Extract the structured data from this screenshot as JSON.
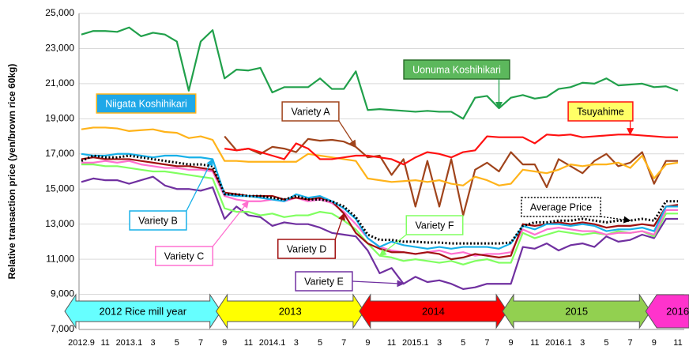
{
  "chart_data": {
    "type": "line",
    "y_label": "Relative transaction price (yen/brown rice 60kg)",
    "categories": [
      "2012.9",
      null,
      "11",
      null,
      "2013.1",
      null,
      "3",
      null,
      "5",
      null,
      "7",
      null,
      "9",
      null,
      "11",
      null,
      "2014.1",
      null,
      "3",
      null,
      "5",
      null,
      "7",
      null,
      "9",
      null,
      "11",
      null,
      "2015.1",
      null,
      "3",
      null,
      "5",
      null,
      "7",
      null,
      "9",
      null,
      "11",
      null,
      "2016.1",
      null,
      "3",
      null,
      "5",
      null,
      "7",
      null,
      "9",
      null,
      "11"
    ],
    "ylim": [
      7000,
      25000
    ],
    "yticks": [
      {
        "value": 7000,
        "label": "7,000"
      },
      {
        "value": 9000,
        "label": "9,000"
      },
      {
        "value": 11000,
        "label": "11,000"
      },
      {
        "value": 13000,
        "label": "13,000"
      },
      {
        "value": 15000,
        "label": "15,000"
      },
      {
        "value": 17000,
        "label": "17,000"
      },
      {
        "value": 19000,
        "label": "19,000"
      },
      {
        "value": 21000,
        "label": "21,000"
      },
      {
        "value": 23000,
        "label": "23,000"
      },
      {
        "value": 25000,
        "label": "25,000"
      }
    ],
    "grid": true,
    "series": [
      {
        "name": "Uonuma Koshihikari",
        "color": "#21a04b",
        "values": [
          23800,
          24000,
          24000,
          23950,
          24200,
          23700,
          23900,
          23800,
          23400,
          20600,
          23400,
          24050,
          21300,
          21800,
          21750,
          21900,
          20500,
          20800,
          20800,
          20800,
          21300,
          20700,
          20700,
          21700,
          19500,
          19550,
          19500,
          19450,
          19400,
          19450,
          19400,
          19400,
          19000,
          20200,
          20300,
          19600,
          20200,
          20350,
          20150,
          20250,
          20700,
          20800,
          21050,
          21000,
          21300,
          20900,
          20950,
          21000,
          20800,
          20850,
          20600
        ]
      },
      {
        "name": "Niigata Koshihikari",
        "color": "#ffb31a",
        "values": [
          18400,
          18500,
          18500,
          18450,
          18300,
          18350,
          18400,
          18250,
          18200,
          17900,
          18000,
          17800,
          16600,
          16600,
          16550,
          16550,
          16550,
          16550,
          16550,
          17000,
          16900,
          16800,
          16700,
          16600,
          15600,
          15500,
          15400,
          15450,
          15500,
          15400,
          15500,
          15300,
          15200,
          15700,
          15500,
          15200,
          15300,
          16100,
          16000,
          15900,
          16100,
          16400,
          16300,
          16400,
          16400,
          16500,
          16200,
          16900,
          15600,
          16400,
          16500
        ]
      },
      {
        "name": "Tsuyahime",
        "color": "#ff1010",
        "values": [
          null,
          null,
          null,
          null,
          null,
          null,
          null,
          null,
          null,
          null,
          null,
          null,
          17300,
          17200,
          17300,
          17100,
          16900,
          16700,
          17600,
          17300,
          16700,
          16700,
          16800,
          16900,
          16900,
          16800,
          16700,
          16400,
          16800,
          17100,
          17000,
          16800,
          17100,
          17200,
          18000,
          17950,
          17950,
          17950,
          17600,
          18100,
          18050,
          18100,
          17950,
          18000,
          18050,
          18100,
          18100,
          18050,
          18000,
          17950,
          17950
        ]
      },
      {
        "name": "Variety A",
        "color": "#a0441c",
        "values": [
          null,
          null,
          null,
          null,
          null,
          null,
          null,
          null,
          null,
          null,
          null,
          null,
          18000,
          17200,
          17300,
          17000,
          17400,
          17300,
          17100,
          17850,
          17750,
          17800,
          17700,
          17400,
          16800,
          16900,
          15800,
          16700,
          14000,
          16600,
          14000,
          16700,
          13500,
          16100,
          16500,
          16000,
          17100,
          16400,
          16400,
          15100,
          16700,
          16300,
          15900,
          16600,
          17000,
          16300,
          16500,
          17100,
          15300,
          16600,
          16600
        ]
      },
      {
        "name": "Average Price",
        "color": "#000000",
        "dash": "dotted",
        "values": [
          16600,
          16900,
          16800,
          16800,
          16900,
          16800,
          16700,
          16600,
          16500,
          16400,
          16400,
          16300,
          14700,
          14700,
          14600,
          14600,
          14500,
          14400,
          14600,
          14400,
          14400,
          14300,
          14000,
          13400,
          12400,
          12100,
          12100,
          12000,
          12000,
          11950,
          11950,
          11900,
          11900,
          11900,
          11900,
          11900,
          11950,
          12900,
          13100,
          13100,
          13200,
          13200,
          13300,
          13200,
          13100,
          13200,
          13200,
          13300,
          13200,
          14300,
          14300
        ]
      },
      {
        "name": "Variety B",
        "color": "#17b0e8",
        "values": [
          17000,
          16900,
          16900,
          17000,
          17000,
          16900,
          16800,
          16900,
          16900,
          16800,
          16800,
          16700,
          14700,
          14600,
          14600,
          14500,
          14400,
          14300,
          14700,
          14500,
          14600,
          14300,
          13900,
          13300,
          12200,
          11700,
          12000,
          11800,
          11700,
          11600,
          11700,
          11600,
          11700,
          11700,
          11700,
          11600,
          11900,
          12900,
          12700,
          13000,
          13000,
          12900,
          13000,
          12900,
          12600,
          12700,
          12700,
          12800,
          12600,
          14000,
          14000
        ]
      },
      {
        "name": "Variety C",
        "color": "#ff70d0",
        "values": [
          16500,
          16500,
          16600,
          16500,
          16600,
          16400,
          16300,
          16200,
          16200,
          16100,
          16100,
          16000,
          14600,
          14400,
          14300,
          14300,
          14400,
          14300,
          14500,
          14300,
          14400,
          14200,
          13700,
          13000,
          12200,
          11700,
          11500,
          11400,
          11300,
          11400,
          11500,
          11300,
          11400,
          11200,
          11300,
          11300,
          11400,
          12700,
          12400,
          12700,
          12800,
          12700,
          12600,
          12600,
          12400,
          12500,
          12500,
          12600,
          12400,
          13800,
          13800
        ]
      },
      {
        "name": "Variety D",
        "color": "#a01010",
        "values": [
          16700,
          16800,
          16700,
          16700,
          16700,
          16600,
          16500,
          16400,
          16300,
          16300,
          16200,
          16100,
          14800,
          14700,
          14600,
          14600,
          14600,
          14400,
          14500,
          14400,
          14500,
          14300,
          13600,
          12500,
          11900,
          11600,
          11400,
          11400,
          11300,
          11400,
          11300,
          11000,
          11100,
          11300,
          11200,
          11100,
          11200,
          13000,
          12900,
          13000,
          13100,
          13000,
          13100,
          13000,
          12800,
          12900,
          12900,
          13000,
          12900,
          14000,
          14100
        ]
      },
      {
        "name": "Variety E",
        "color": "#7030a0",
        "values": [
          15400,
          15600,
          15500,
          15500,
          15300,
          15500,
          15700,
          15200,
          15000,
          15000,
          14900,
          15100,
          13300,
          14000,
          13500,
          13400,
          12900,
          13100,
          13000,
          13000,
          12800,
          12500,
          12400,
          12300,
          11500,
          10200,
          10500,
          9600,
          10000,
          9700,
          9800,
          9600,
          9300,
          9400,
          9600,
          9600,
          9600,
          11700,
          11600,
          11900,
          11500,
          11800,
          11900,
          11700,
          12300,
          12000,
          12100,
          12400,
          12200,
          13300,
          13300
        ]
      },
      {
        "name": "Variety F",
        "color": "#80ff60",
        "values": [
          16400,
          16400,
          16300,
          16300,
          16200,
          16100,
          16000,
          16000,
          15900,
          15800,
          15700,
          15600,
          13900,
          13700,
          13700,
          13500,
          13600,
          13400,
          13500,
          13500,
          13700,
          13600,
          13200,
          12700,
          11900,
          11200,
          11100,
          10900,
          11000,
          10900,
          10800,
          10900,
          10700,
          10900,
          11000,
          10800,
          10800,
          12500,
          12200,
          12400,
          12600,
          12500,
          12400,
          12500,
          12400,
          12600,
          12500,
          12600,
          12300,
          13600,
          13600
        ]
      }
    ],
    "periods": [
      {
        "label": "2012 Rice mill year",
        "color": "#66ffff"
      },
      {
        "label": "2013",
        "color": "#ffff00"
      },
      {
        "label": "2014",
        "color": "#ff0000"
      },
      {
        "label": "2015",
        "color": "#92d050"
      },
      {
        "label": "2016",
        "color": "#ff33cc"
      }
    ]
  }
}
